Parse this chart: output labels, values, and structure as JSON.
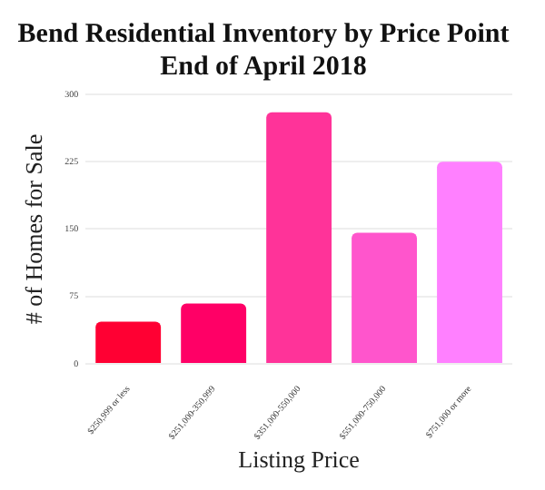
{
  "chart_data": {
    "type": "bar",
    "title": "Bend Residential Inventory by Price Point",
    "subtitle": "End of April 2018",
    "xlabel": "Listing Price",
    "ylabel": "# of Homes for Sale",
    "categories": [
      "$250,999 or less",
      "$251,000-350,999",
      "$351,000-550,000",
      "$551,000-750,000",
      "$751,000 or more"
    ],
    "values": [
      47,
      67,
      280,
      146,
      225
    ],
    "colors": [
      "#ff0033",
      "#ff0066",
      "#ff3399",
      "#ff55cc",
      "#ff80ff"
    ],
    "ylim": [
      0,
      300
    ],
    "yticks": [
      0,
      75,
      150,
      225,
      300
    ],
    "grid": "y",
    "legend": false
  }
}
